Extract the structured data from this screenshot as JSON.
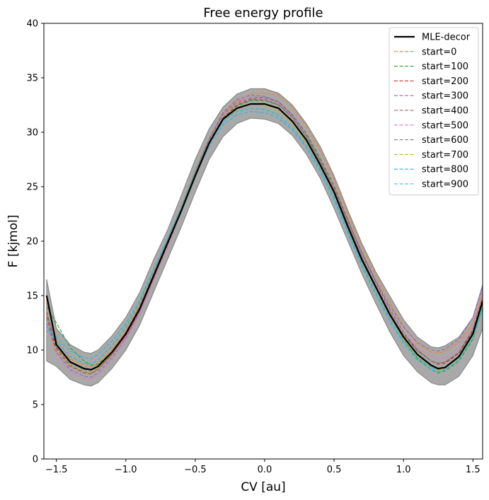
{
  "chart_data": {
    "type": "line",
    "title": "Free energy profile",
    "xlabel": "CV [au]",
    "ylabel": "F [kjmol]",
    "xlim": [
      -1.59,
      1.57
    ],
    "ylim": [
      0,
      40
    ],
    "xticks": [
      -1.5,
      -1.0,
      -0.5,
      0.0,
      0.5,
      1.0,
      1.5
    ],
    "xtick_labels": [
      "−1.5",
      "−1.0",
      "−0.5",
      "0.0",
      "0.5",
      "1.0",
      "1.5"
    ],
    "yticks": [
      0,
      5,
      10,
      15,
      20,
      25,
      30,
      35,
      40
    ],
    "yticks_labels": [
      "0",
      "5",
      "10",
      "15",
      "20",
      "25",
      "30",
      "35",
      "40"
    ],
    "grid": false,
    "legend_position": "top-right",
    "x": [
      -1.57,
      -1.5,
      -1.4,
      -1.3,
      -1.25,
      -1.2,
      -1.1,
      -1.0,
      -0.9,
      -0.8,
      -0.7,
      -0.6,
      -0.5,
      -0.4,
      -0.3,
      -0.2,
      -0.1,
      0.0,
      0.1,
      0.2,
      0.3,
      0.4,
      0.5,
      0.6,
      0.7,
      0.8,
      0.9,
      1.0,
      1.1,
      1.2,
      1.25,
      1.3,
      1.4,
      1.5,
      1.57
    ],
    "band": {
      "name": "confidence band",
      "color": "#a9a9a9",
      "edge_color": "#808080",
      "upper": [
        16.5,
        12.0,
        10.5,
        9.8,
        9.7,
        10.0,
        11.3,
        13.0,
        15.3,
        18.3,
        21.0,
        24.2,
        27.5,
        30.3,
        32.3,
        33.5,
        34.0,
        34.0,
        33.6,
        32.5,
        30.8,
        28.7,
        26.0,
        22.8,
        19.8,
        17.2,
        15.0,
        12.8,
        11.2,
        10.3,
        10.2,
        10.4,
        11.2,
        13.0,
        16.0
      ],
      "lower": [
        9.0,
        8.5,
        7.3,
        6.8,
        6.7,
        7.0,
        8.3,
        10.0,
        12.3,
        15.3,
        18.3,
        21.3,
        24.5,
        27.5,
        29.6,
        30.8,
        31.3,
        31.2,
        30.8,
        29.7,
        28.0,
        25.8,
        23.0,
        20.0,
        17.0,
        14.3,
        11.7,
        9.5,
        8.0,
        7.0,
        6.8,
        6.8,
        7.6,
        9.5,
        12.0
      ]
    },
    "series": [
      {
        "name": "MLE-decor",
        "color": "#000000",
        "dashed": false,
        "width": 2.2,
        "values": [
          15.0,
          10.5,
          8.9,
          8.3,
          8.2,
          8.5,
          9.8,
          11.5,
          13.8,
          16.8,
          19.8,
          22.8,
          26.0,
          29.0,
          31.2,
          32.2,
          32.6,
          32.6,
          32.2,
          31.0,
          29.3,
          27.0,
          24.5,
          21.3,
          18.3,
          15.8,
          13.3,
          11.2,
          9.6,
          8.6,
          8.3,
          8.4,
          9.4,
          11.5,
          14.5
        ]
      },
      {
        "name": "start=0",
        "color": "#ff7f0e",
        "dashed": true,
        "width": 1.1,
        "values": [
          14.5,
          11.0,
          9.2,
          8.6,
          8.5,
          8.8,
          10.1,
          11.8,
          14.2,
          17.2,
          20.2,
          23.2,
          26.4,
          29.4,
          31.7,
          32.9,
          33.5,
          33.6,
          33.4,
          32.3,
          30.6,
          28.3,
          25.7,
          22.5,
          19.5,
          16.9,
          14.4,
          12.2,
          10.6,
          9.8,
          9.7,
          9.9,
          10.7,
          12.4,
          15.0
        ]
      },
      {
        "name": "start=100",
        "color": "#2ca02c",
        "dashed": true,
        "width": 1.1,
        "values": [
          14.0,
          12.5,
          10.2,
          9.0,
          8.6,
          8.7,
          9.8,
          11.6,
          14.0,
          17.0,
          20.0,
          23.0,
          26.2,
          29.2,
          31.3,
          32.4,
          32.9,
          32.9,
          32.5,
          31.4,
          29.7,
          27.4,
          24.8,
          21.6,
          18.5,
          15.9,
          13.4,
          11.0,
          9.2,
          8.2,
          7.9,
          8.1,
          9.0,
          11.0,
          14.0
        ]
      },
      {
        "name": "start=200",
        "color": "#d62728",
        "dashed": true,
        "width": 1.1,
        "values": [
          13.5,
          10.2,
          8.6,
          8.0,
          7.9,
          8.3,
          9.6,
          11.3,
          13.6,
          16.6,
          19.6,
          22.7,
          26.0,
          29.0,
          31.3,
          32.5,
          33.0,
          33.0,
          32.6,
          31.4,
          29.6,
          27.3,
          24.7,
          21.5,
          18.4,
          15.8,
          13.4,
          11.4,
          10.0,
          9.0,
          8.7,
          8.8,
          9.7,
          11.7,
          14.5
        ]
      },
      {
        "name": "start=300",
        "color": "#9467bd",
        "dashed": true,
        "width": 1.1,
        "values": [
          12.5,
          9.8,
          8.2,
          7.6,
          7.5,
          7.9,
          9.3,
          11.1,
          13.5,
          16.6,
          19.7,
          22.9,
          26.3,
          29.4,
          31.8,
          33.0,
          33.4,
          33.3,
          32.8,
          31.5,
          29.6,
          27.2,
          24.8,
          21.9,
          19.0,
          16.4,
          14.1,
          12.1,
          10.7,
          10.0,
          9.9,
          10.1,
          11.0,
          13.0,
          15.8
        ]
      },
      {
        "name": "start=400",
        "color": "#8c564b",
        "dashed": true,
        "width": 1.1,
        "values": [
          13.0,
          10.0,
          8.5,
          7.9,
          7.8,
          8.2,
          9.6,
          11.4,
          13.8,
          16.8,
          19.9,
          23.0,
          26.3,
          29.3,
          31.6,
          32.8,
          33.2,
          33.2,
          32.8,
          31.6,
          29.9,
          27.6,
          25.1,
          21.9,
          18.9,
          16.3,
          13.8,
          11.6,
          10.0,
          9.0,
          8.8,
          8.9,
          9.8,
          11.9,
          14.8
        ]
      },
      {
        "name": "start=500",
        "color": "#e377c2",
        "dashed": true,
        "width": 1.1,
        "values": [
          12.0,
          9.6,
          8.0,
          7.4,
          7.3,
          7.7,
          9.1,
          10.9,
          13.3,
          16.4,
          19.5,
          22.7,
          26.1,
          29.2,
          31.6,
          32.8,
          33.2,
          33.1,
          32.6,
          31.4,
          29.6,
          27.3,
          24.8,
          21.7,
          18.7,
          16.1,
          13.7,
          11.6,
          10.2,
          9.4,
          9.2,
          9.3,
          10.2,
          12.3,
          15.3
        ]
      },
      {
        "name": "start=600",
        "color": "#7f7f7f",
        "dashed": true,
        "width": 1.1,
        "values": [
          13.2,
          10.4,
          8.8,
          8.2,
          8.1,
          8.5,
          9.8,
          11.6,
          14.0,
          17.0,
          20.0,
          23.1,
          26.4,
          29.4,
          31.6,
          32.7,
          33.1,
          33.0,
          32.5,
          31.3,
          29.6,
          27.3,
          24.8,
          21.6,
          18.6,
          16.0,
          13.5,
          11.4,
          9.9,
          9.0,
          8.8,
          8.9,
          9.8,
          11.8,
          14.6
        ]
      },
      {
        "name": "start=700",
        "color": "#bcbd22",
        "dashed": true,
        "width": 1.1,
        "values": [
          11.5,
          10.0,
          8.6,
          8.0,
          7.9,
          8.3,
          9.7,
          11.5,
          13.9,
          16.9,
          19.8,
          22.8,
          26.0,
          29.0,
          31.2,
          32.3,
          32.6,
          32.5,
          32.0,
          30.8,
          29.1,
          26.9,
          24.4,
          21.2,
          18.2,
          15.6,
          13.2,
          11.0,
          9.4,
          8.4,
          8.1,
          8.2,
          9.1,
          11.2,
          14.2
        ]
      },
      {
        "name": "start=800",
        "color": "#17becf",
        "dashed": true,
        "width": 1.1,
        "values": [
          12.2,
          10.8,
          9.4,
          8.8,
          8.7,
          9.1,
          10.4,
          12.1,
          14.4,
          17.3,
          20.2,
          23.1,
          26.2,
          29.0,
          31.0,
          31.9,
          32.2,
          32.1,
          31.6,
          30.4,
          28.8,
          26.6,
          24.0,
          20.9,
          17.9,
          15.3,
          12.9,
          10.8,
          9.3,
          8.4,
          8.2,
          8.4,
          9.3,
          11.3,
          14.0
        ]
      },
      {
        "name": "start=900",
        "color": "#1fb8e6",
        "dashed": true,
        "width": 1.1,
        "values": [
          11.8,
          11.2,
          9.9,
          9.3,
          9.2,
          9.6,
          10.8,
          12.4,
          14.6,
          17.4,
          20.2,
          23.0,
          26.0,
          28.7,
          30.7,
          31.6,
          31.9,
          31.8,
          31.3,
          30.2,
          28.6,
          26.4,
          23.8,
          20.7,
          17.7,
          15.1,
          12.7,
          10.6,
          9.1,
          8.2,
          8.0,
          8.2,
          9.1,
          11.1,
          13.8
        ]
      }
    ]
  }
}
